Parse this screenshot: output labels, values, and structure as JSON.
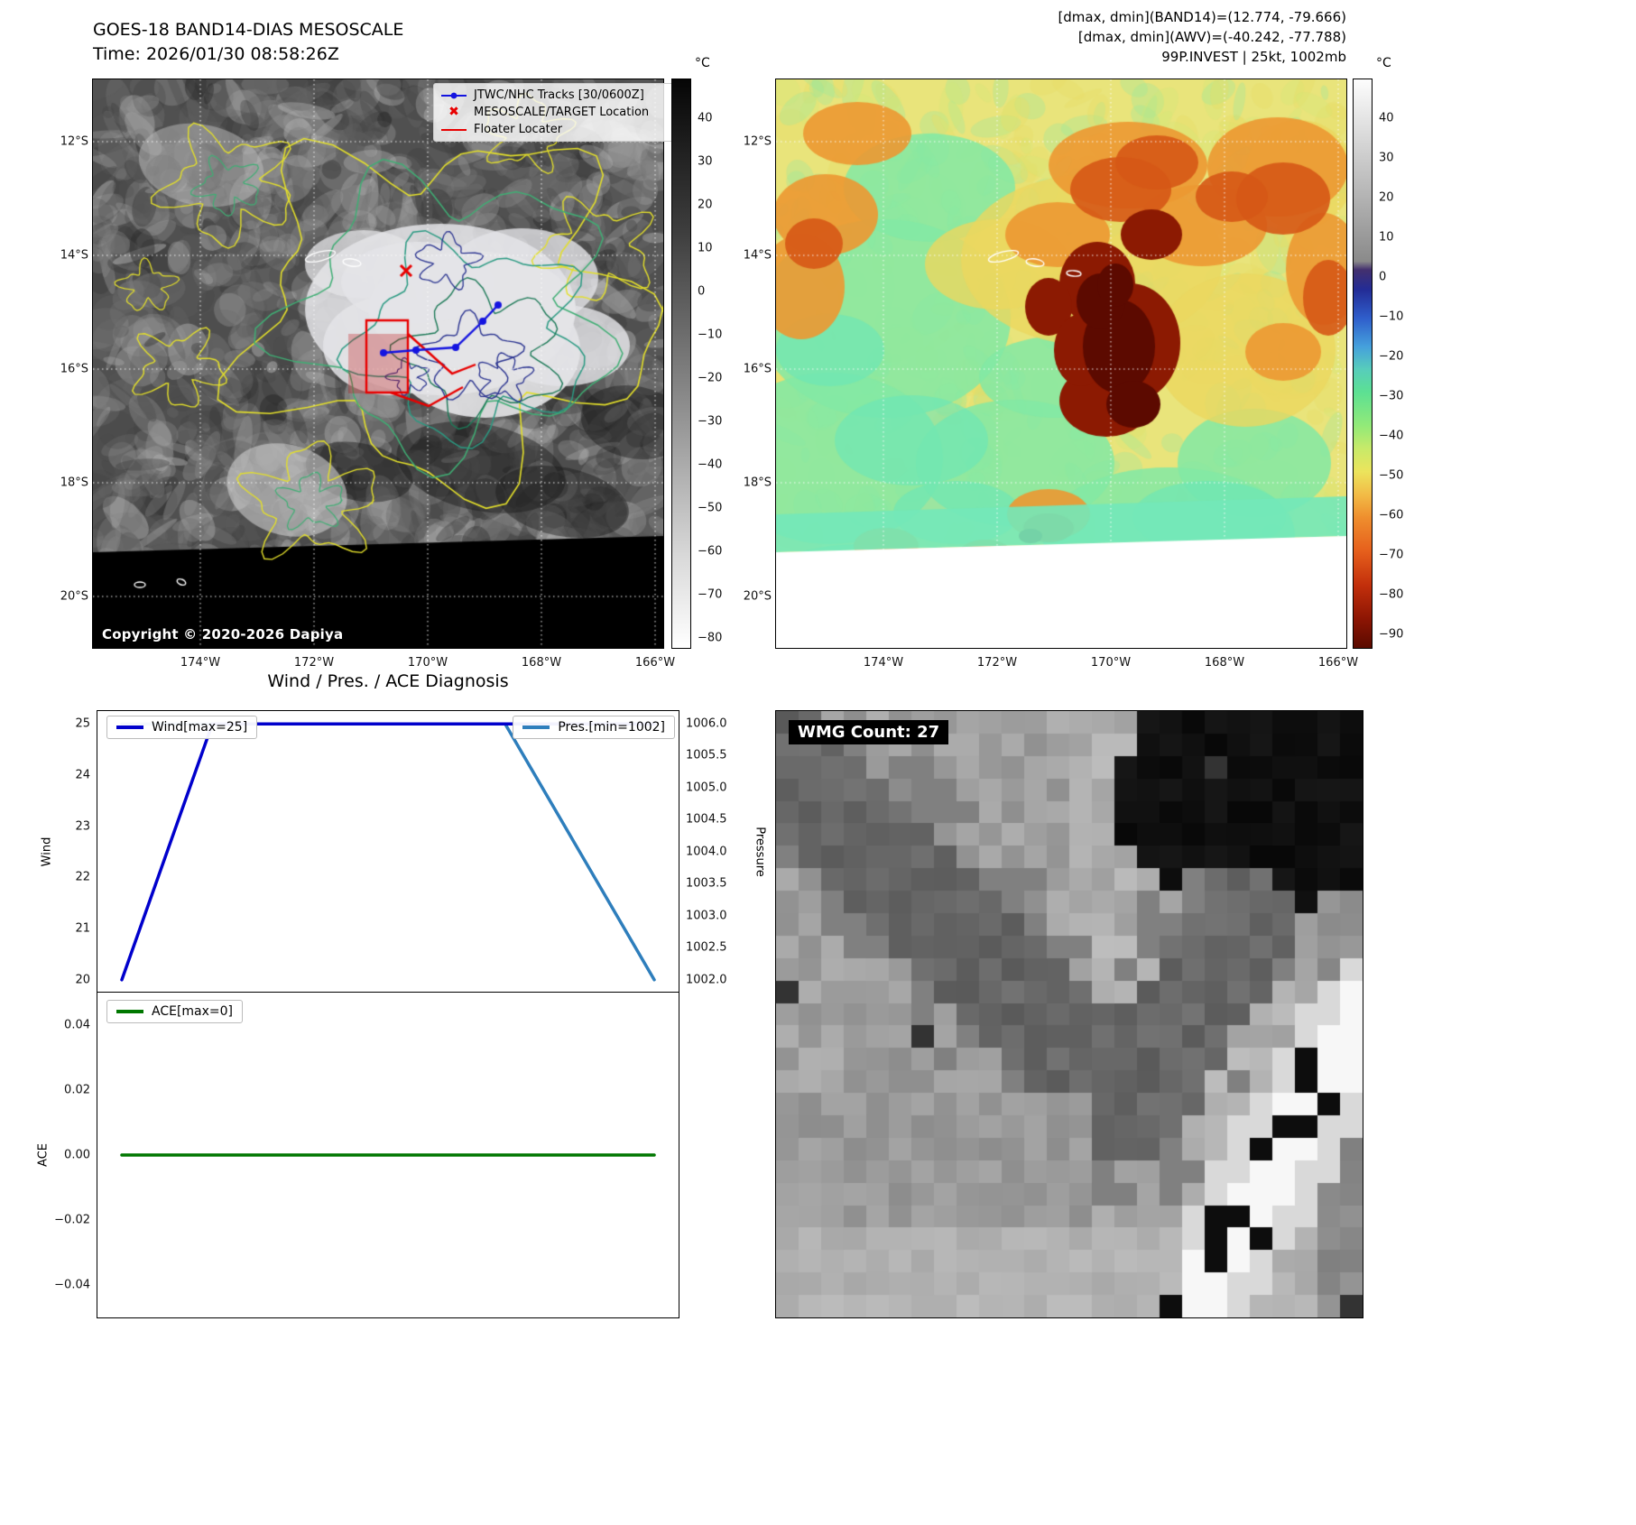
{
  "top_left": {
    "title": "GOES-18 BAND14-DIAS MESOSCALE",
    "subtitle": "Time: 2026/01/30 08:58:26Z",
    "copyright": "Copyright © 2020-2026 Dapiya",
    "legend": {
      "tracks_label": "JTWC/NHC Tracks [30/0600Z]",
      "target_label": "MESOSCALE/TARGET Location",
      "floater_label": "Floater Locater"
    },
    "colorbar": {
      "unit": "°C",
      "ticks": [
        "40",
        "30",
        "20",
        "10",
        "0",
        "−10",
        "−20",
        "−30",
        "−40",
        "−50",
        "−60",
        "−70",
        "−80"
      ]
    },
    "lat_ticks": [
      "12°S",
      "14°S",
      "16°S",
      "18°S",
      "20°S"
    ],
    "lon_ticks": [
      "174°W",
      "172°W",
      "170°W",
      "168°W",
      "166°W"
    ]
  },
  "top_right": {
    "header_line1": "[dmax, dmin](BAND14)=(12.774, -79.666)",
    "header_line2": "[dmax, dmin](AWV)=(-40.242, -77.788)",
    "header_line3": "99P.INVEST | 25kt, 1002mb",
    "colorbar": {
      "unit": "°C",
      "ticks": [
        "40",
        "30",
        "20",
        "10",
        "0",
        "−10",
        "−20",
        "−30",
        "−40",
        "−50",
        "−60",
        "−70",
        "−80",
        "−90"
      ]
    },
    "lat_ticks": [
      "12°S",
      "14°S",
      "16°S",
      "18°S",
      "20°S"
    ],
    "lon_ticks": [
      "174°W",
      "172°W",
      "170°W",
      "168°W",
      "166°W"
    ]
  },
  "diagnosis": {
    "title": "Wind / Pres. / ACE Diagnosis",
    "wind_legend": "Wind[max=25]",
    "pres_legend": "Pres.[min=1002]",
    "ace_legend": "ACE[max=0]",
    "ylabel_wind": "Wind",
    "ylabel_pressure": "Pressure",
    "ylabel_ace": "ACE",
    "wind_ticks": [
      "25",
      "24",
      "23",
      "22",
      "21",
      "20"
    ],
    "pressure_ticks": [
      "1006.0",
      "1005.5",
      "1005.0",
      "1004.5",
      "1004.0",
      "1003.5",
      "1003.0",
      "1002.5",
      "1002.0"
    ],
    "ace_ticks": [
      "0.04",
      "0.02",
      "0.00",
      "−0.02",
      "−0.04"
    ]
  },
  "wmg": {
    "count_label": "WMG Count: 27"
  },
  "chart_data": [
    {
      "type": "line",
      "title": "Wind / Pres. / ACE Diagnosis",
      "panel": "wind_pressure",
      "x_note": "time axis, no tick labels shown",
      "series": [
        {
          "name": "Wind[max=25]",
          "color": "#0000cc",
          "y_axis": "left",
          "x": [
            0,
            0.17,
            1.0
          ],
          "values": [
            20,
            25,
            25
          ]
        },
        {
          "name": "Pres.[min=1002]",
          "color": "#2e7ebc",
          "y_axis": "right",
          "x": [
            0,
            0.72,
            1.0
          ],
          "values": [
            1006,
            1006,
            1002
          ]
        }
      ],
      "ylabel_left": "Wind",
      "ylim_left": [
        19.75,
        25.25
      ],
      "ylabel_right": "Pressure",
      "ylim_right": [
        1001.8,
        1006.2
      ],
      "legend_positions": [
        "upper left",
        "upper right"
      ],
      "grid": false
    },
    {
      "type": "line",
      "panel": "ace",
      "series": [
        {
          "name": "ACE[max=0]",
          "color": "#007700",
          "x": [
            0,
            1.0
          ],
          "values": [
            0,
            0
          ]
        }
      ],
      "ylabel": "ACE",
      "ylim": [
        -0.05,
        0.05
      ],
      "legend_positions": [
        "upper left"
      ],
      "grid": false
    }
  ]
}
